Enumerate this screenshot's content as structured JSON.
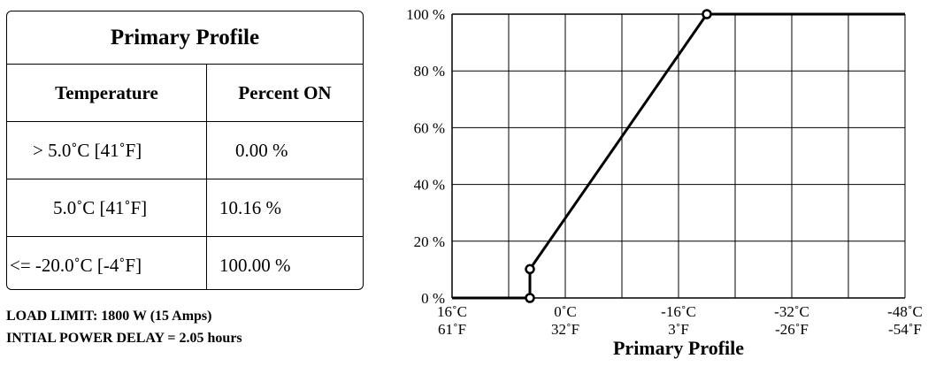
{
  "table": {
    "title": "Primary Profile",
    "headers": [
      "Temperature",
      "Percent ON"
    ],
    "rows": [
      {
        "temperature": "> 5.0˚C [41˚F]",
        "percent": "0.00 %"
      },
      {
        "temperature": "5.0˚C [41˚F]",
        "percent": "10.16 %"
      },
      {
        "temperature": "<= -20.0˚C [-4˚F]",
        "percent": "100.00 %"
      }
    ]
  },
  "notes": {
    "load_limit": "LOAD LIMIT: 1800 W (15 Amps)",
    "initial_delay": "INTIAL POWER DELAY = 2.05 hours"
  },
  "chart_data": {
    "type": "line",
    "xlabel": "Primary Profile",
    "ylabel": "",
    "x_direction": "decreasing",
    "xlim": [
      16,
      -48
    ],
    "ylim": [
      0,
      100
    ],
    "grid": true,
    "x_ticks": [
      {
        "c": 16,
        "c_label": "16˚C",
        "f_label": "61˚F"
      },
      {
        "c": 0,
        "c_label": "0˚C",
        "f_label": "32˚F"
      },
      {
        "c": -16,
        "c_label": "-16˚C",
        "f_label": "3˚F"
      },
      {
        "c": -32,
        "c_label": "-32˚C",
        "f_label": "-26˚F"
      },
      {
        "c": -48,
        "c_label": "-48˚C",
        "f_label": "-54˚F"
      }
    ],
    "x_gridlines": [
      16,
      8,
      0,
      -8,
      -16,
      -24,
      -32,
      -40,
      -48
    ],
    "y_ticks": [
      {
        "v": 0,
        "label": "0 %"
      },
      {
        "v": 20,
        "label": "20 %"
      },
      {
        "v": 40,
        "label": "40 %"
      },
      {
        "v": 60,
        "label": "60 %"
      },
      {
        "v": 80,
        "label": "80 %"
      },
      {
        "v": 100,
        "label": "100 %"
      }
    ],
    "series": [
      {
        "x": [
          16,
          5,
          5,
          -20,
          -48
        ],
        "y": [
          0,
          0,
          10.16,
          100,
          100
        ],
        "markers": [
          false,
          true,
          true,
          true,
          false
        ]
      }
    ],
    "colors": {
      "line": "#000000",
      "grid": "#000000",
      "marker_fill": "#ffffff"
    }
  }
}
